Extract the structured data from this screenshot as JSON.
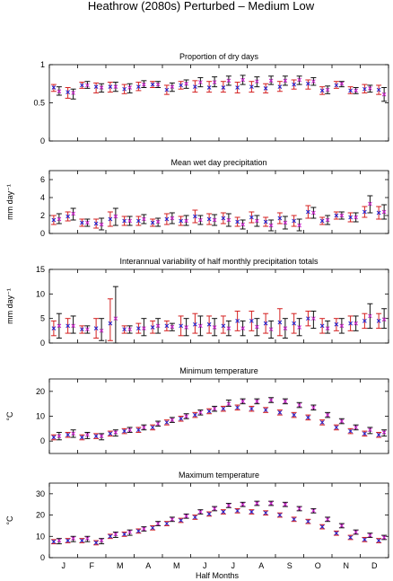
{
  "figure": {
    "title": "Heathrow (2080s) Perturbed – Medium Low",
    "xlabel": "Half Months",
    "month_labels": [
      "J",
      "F",
      "M",
      "A",
      "M",
      "J",
      "J",
      "A",
      "S",
      "O",
      "N",
      "D"
    ]
  },
  "colors": {
    "obs": "#d42020",
    "model": "#111111",
    "obs_marker": "#2020d0",
    "model_marker": "#cc20cc"
  },
  "chart_data": [
    {
      "type": "errorbar",
      "title": "Proportion of dry days",
      "ylabel": "",
      "ylim": [
        0,
        1
      ],
      "yticks": [
        0,
        0.5,
        1
      ],
      "ytick_labels": [
        "0",
        "0.5",
        "1"
      ],
      "x": [
        1,
        2,
        3,
        4,
        5,
        6,
        7,
        8,
        9,
        10,
        11,
        12,
        13,
        14,
        15,
        16,
        17,
        18,
        19,
        20,
        21,
        22,
        23,
        24
      ],
      "series": [
        {
          "role": "red",
          "center": [
            0.7,
            0.64,
            0.73,
            0.71,
            0.71,
            0.68,
            0.71,
            0.74,
            0.67,
            0.73,
            0.71,
            0.7,
            0.7,
            0.7,
            0.71,
            0.69,
            0.71,
            0.74,
            0.75,
            0.66,
            0.73,
            0.66,
            0.68,
            0.67
          ],
          "low": [
            0.65,
            0.56,
            0.69,
            0.63,
            0.64,
            0.62,
            0.66,
            0.7,
            0.61,
            0.68,
            0.64,
            0.64,
            0.64,
            0.63,
            0.64,
            0.63,
            0.65,
            0.68,
            0.68,
            0.61,
            0.69,
            0.62,
            0.63,
            0.61
          ],
          "high": [
            0.74,
            0.7,
            0.77,
            0.76,
            0.77,
            0.74,
            0.77,
            0.78,
            0.73,
            0.78,
            0.79,
            0.78,
            0.78,
            0.77,
            0.78,
            0.75,
            0.78,
            0.8,
            0.8,
            0.71,
            0.78,
            0.71,
            0.74,
            0.73
          ]
        },
        {
          "role": "black",
          "center": [
            0.65,
            0.63,
            0.73,
            0.7,
            0.71,
            0.7,
            0.74,
            0.74,
            0.71,
            0.75,
            0.77,
            0.77,
            0.79,
            0.8,
            0.78,
            0.79,
            0.79,
            0.8,
            0.78,
            0.67,
            0.75,
            0.66,
            0.69,
            0.61
          ],
          "low": [
            0.6,
            0.55,
            0.69,
            0.64,
            0.65,
            0.63,
            0.7,
            0.7,
            0.65,
            0.69,
            0.71,
            0.71,
            0.73,
            0.74,
            0.71,
            0.74,
            0.73,
            0.74,
            0.73,
            0.62,
            0.71,
            0.62,
            0.64,
            0.52
          ],
          "high": [
            0.71,
            0.68,
            0.78,
            0.75,
            0.77,
            0.75,
            0.79,
            0.78,
            0.76,
            0.8,
            0.83,
            0.84,
            0.85,
            0.86,
            0.84,
            0.85,
            0.85,
            0.85,
            0.83,
            0.72,
            0.78,
            0.7,
            0.73,
            0.7
          ]
        }
      ]
    },
    {
      "type": "errorbar",
      "title": "Mean wet day precipitation",
      "ylabel": "mm day⁻¹",
      "ylim": [
        0,
        7
      ],
      "yticks": [
        0,
        2,
        4,
        6
      ],
      "ytick_labels": [
        "0",
        "2",
        "4",
        "6"
      ],
      "x": [
        1,
        2,
        3,
        4,
        5,
        6,
        7,
        8,
        9,
        10,
        11,
        12,
        13,
        14,
        15,
        16,
        17,
        18,
        19,
        20,
        21,
        22,
        23,
        24
      ],
      "series": [
        {
          "role": "red",
          "center": [
            1.5,
            1.9,
            1.2,
            1.1,
            1.6,
            1.4,
            1.4,
            1.2,
            1.6,
            1.4,
            1.9,
            1.6,
            1.7,
            1.3,
            1.8,
            1.3,
            1.7,
            1.4,
            2.4,
            1.4,
            2.0,
            1.8,
            2.4,
            2.3
          ],
          "low": [
            1.0,
            1.4,
            0.8,
            0.6,
            0.8,
            0.9,
            0.9,
            0.8,
            1.0,
            0.9,
            1.2,
            1.0,
            1.1,
            0.8,
            1.2,
            0.8,
            1.1,
            0.8,
            1.7,
            1.0,
            1.6,
            1.3,
            1.8,
            1.6
          ],
          "high": [
            2.0,
            2.4,
            1.6,
            1.6,
            2.4,
            1.9,
            1.9,
            1.6,
            2.2,
            1.9,
            2.6,
            2.2,
            2.3,
            1.8,
            2.4,
            1.8,
            2.3,
            2.0,
            3.1,
            1.8,
            2.4,
            2.3,
            3.0,
            3.0
          ]
        },
        {
          "role": "black",
          "center": [
            1.6,
            2.2,
            1.2,
            1.0,
            1.9,
            1.4,
            1.6,
            1.3,
            1.7,
            1.4,
            1.5,
            1.5,
            1.5,
            1.0,
            1.4,
            0.9,
            1.2,
            0.9,
            2.3,
            1.5,
            2.0,
            1.8,
            3.3,
            2.4
          ],
          "low": [
            1.1,
            1.5,
            0.8,
            0.4,
            0.9,
            0.9,
            1.1,
            0.8,
            1.1,
            0.9,
            1.0,
            0.9,
            0.8,
            0.5,
            0.8,
            0.3,
            0.5,
            0.3,
            1.7,
            1.0,
            1.6,
            1.3,
            2.3,
            1.6
          ],
          "high": [
            2.2,
            2.8,
            1.6,
            1.7,
            2.8,
            1.9,
            2.1,
            1.7,
            2.3,
            2.0,
            2.0,
            2.1,
            2.2,
            1.5,
            2.0,
            1.5,
            1.9,
            1.6,
            2.9,
            2.0,
            2.4,
            2.3,
            4.2,
            3.2
          ]
        }
      ]
    },
    {
      "type": "errorbar",
      "title": "Interannual variability of half monthly precipitation totals",
      "ylabel": "mm day⁻¹",
      "ylim": [
        0,
        15
      ],
      "yticks": [
        0,
        5,
        10,
        15
      ],
      "ytick_labels": [
        "0",
        "5",
        "10",
        "15"
      ],
      "x": [
        1,
        2,
        3,
        4,
        5,
        6,
        7,
        8,
        9,
        10,
        11,
        12,
        13,
        14,
        15,
        16,
        17,
        18,
        19,
        20,
        21,
        22,
        23,
        24
      ],
      "series": [
        {
          "role": "red",
          "center": [
            3.0,
            3.5,
            2.8,
            3.0,
            4.0,
            2.8,
            3.0,
            3.2,
            3.5,
            3.5,
            3.8,
            3.8,
            3.5,
            4.5,
            4.5,
            4.0,
            4.2,
            4.0,
            5.0,
            3.5,
            3.8,
            4.0,
            4.5,
            4.5
          ],
          "low": [
            1.5,
            2.0,
            2.0,
            1.0,
            0.5,
            2.0,
            2.0,
            2.0,
            2.5,
            1.5,
            2.0,
            2.0,
            2.0,
            2.5,
            2.5,
            2.0,
            1.5,
            2.0,
            3.5,
            2.0,
            2.5,
            2.5,
            3.0,
            3.0
          ],
          "high": [
            4.5,
            5.0,
            3.5,
            5.0,
            9.0,
            3.5,
            4.0,
            4.5,
            4.5,
            5.5,
            6.0,
            5.5,
            5.5,
            6.5,
            6.5,
            6.0,
            7.0,
            6.0,
            6.5,
            5.0,
            5.0,
            5.5,
            6.0,
            6.0
          ]
        },
        {
          "role": "black",
          "center": [
            3.5,
            3.5,
            2.8,
            2.5,
            5.0,
            2.8,
            3.0,
            3.5,
            3.3,
            3.2,
            3.5,
            3.2,
            3.0,
            3.0,
            3.3,
            2.8,
            3.0,
            3.2,
            5.0,
            3.0,
            3.5,
            4.0,
            5.5,
            4.8
          ],
          "low": [
            1.0,
            2.0,
            2.0,
            0.5,
            0.0,
            2.0,
            1.5,
            2.0,
            2.5,
            1.5,
            1.5,
            1.5,
            1.5,
            1.5,
            1.5,
            1.0,
            1.0,
            1.5,
            3.0,
            2.0,
            2.0,
            2.5,
            3.0,
            3.0
          ],
          "high": [
            6.0,
            5.5,
            3.5,
            5.0,
            11.5,
            3.5,
            5.0,
            5.0,
            4.0,
            5.0,
            5.5,
            5.0,
            4.5,
            4.5,
            5.0,
            4.5,
            5.0,
            5.0,
            6.5,
            4.5,
            5.0,
            5.5,
            8.0,
            7.0
          ]
        }
      ]
    },
    {
      "type": "errorbar",
      "title": "Minimum temperature",
      "ylabel": "°C",
      "ylim": [
        -5,
        25
      ],
      "yticks": [
        0,
        10,
        20
      ],
      "ytick_labels": [
        "0",
        "10",
        "20"
      ],
      "x": [
        1,
        2,
        3,
        4,
        5,
        6,
        7,
        8,
        9,
        10,
        11,
        12,
        13,
        14,
        15,
        16,
        17,
        18,
        19,
        20,
        21,
        22,
        23,
        24
      ],
      "series": [
        {
          "role": "red",
          "center": [
            1.5,
            2.5,
            1.5,
            2.0,
            3.0,
            4.0,
            4.5,
            5.5,
            7.5,
            9.0,
            10.5,
            12.0,
            13.0,
            13.5,
            13.0,
            12.5,
            11.5,
            10.5,
            9.5,
            7.5,
            5.5,
            4.0,
            3.0,
            2.5
          ],
          "low": [
            0.5,
            1.5,
            0.5,
            1.0,
            2.0,
            3.0,
            3.5,
            4.5,
            6.5,
            8.0,
            9.5,
            11.0,
            12.0,
            12.5,
            12.0,
            11.5,
            10.5,
            9.5,
            8.5,
            6.5,
            4.5,
            3.0,
            2.0,
            1.5
          ],
          "high": [
            2.5,
            3.5,
            2.5,
            3.0,
            4.0,
            5.0,
            5.5,
            6.5,
            8.5,
            10.0,
            11.5,
            13.0,
            14.0,
            14.5,
            14.0,
            13.5,
            12.5,
            11.5,
            10.5,
            8.5,
            6.5,
            5.0,
            4.0,
            3.5
          ]
        },
        {
          "role": "black",
          "center": [
            2.0,
            3.0,
            2.5,
            2.0,
            3.5,
            4.5,
            5.5,
            7.0,
            8.5,
            10.0,
            11.5,
            13.0,
            15.0,
            16.0,
            16.0,
            16.5,
            16.0,
            14.5,
            13.5,
            10.5,
            8.0,
            5.5,
            4.5,
            3.5
          ],
          "low": [
            0.5,
            1.5,
            1.0,
            0.5,
            2.0,
            3.5,
            4.5,
            6.0,
            7.5,
            9.0,
            10.5,
            12.0,
            14.0,
            15.0,
            15.0,
            15.5,
            15.0,
            13.5,
            12.5,
            9.5,
            7.0,
            4.5,
            3.0,
            2.0
          ],
          "high": [
            3.5,
            4.5,
            3.5,
            3.0,
            4.5,
            5.5,
            6.5,
            8.0,
            9.5,
            11.0,
            12.5,
            14.0,
            16.5,
            17.0,
            17.0,
            17.5,
            17.0,
            15.5,
            14.5,
            11.5,
            9.0,
            6.5,
            5.5,
            4.5
          ]
        }
      ]
    },
    {
      "type": "errorbar",
      "title": "Maximum temperature",
      "ylabel": "°C",
      "ylim": [
        0,
        35
      ],
      "yticks": [
        0,
        10,
        20,
        30
      ],
      "ytick_labels": [
        "0",
        "10",
        "20",
        "30"
      ],
      "x": [
        1,
        2,
        3,
        4,
        5,
        6,
        7,
        8,
        9,
        10,
        11,
        12,
        13,
        14,
        15,
        16,
        17,
        18,
        19,
        20,
        21,
        22,
        23,
        24
      ],
      "series": [
        {
          "role": "red",
          "center": [
            7.5,
            8.0,
            8.0,
            7.0,
            10.0,
            11.0,
            12.5,
            14.0,
            16.0,
            17.5,
            19.0,
            20.5,
            21.5,
            22.0,
            21.5,
            21.0,
            20.0,
            18.0,
            17.0,
            14.5,
            11.5,
            9.5,
            8.5,
            8.0
          ],
          "low": [
            6.5,
            7.0,
            7.0,
            6.0,
            9.0,
            10.0,
            11.5,
            13.0,
            15.0,
            16.5,
            18.0,
            19.5,
            20.5,
            21.0,
            20.5,
            20.0,
            19.0,
            17.0,
            16.0,
            13.5,
            10.5,
            8.5,
            7.5,
            7.0
          ],
          "high": [
            8.5,
            9.0,
            9.0,
            8.0,
            11.0,
            12.0,
            13.5,
            15.0,
            17.0,
            18.5,
            20.0,
            21.5,
            22.5,
            23.0,
            22.5,
            22.0,
            21.0,
            19.0,
            18.0,
            15.5,
            12.5,
            10.5,
            9.5,
            9.0
          ]
        },
        {
          "role": "black",
          "center": [
            8.0,
            9.0,
            9.0,
            8.0,
            11.0,
            12.0,
            13.5,
            16.0,
            18.0,
            19.5,
            21.5,
            23.0,
            24.5,
            25.0,
            25.5,
            25.5,
            25.0,
            23.0,
            22.0,
            18.0,
            15.0,
            12.0,
            10.5,
            9.5
          ],
          "low": [
            6.5,
            7.5,
            7.5,
            6.5,
            9.5,
            10.5,
            12.5,
            15.0,
            17.0,
            18.5,
            20.5,
            22.0,
            23.5,
            24.0,
            24.5,
            24.5,
            24.0,
            22.0,
            21.0,
            17.0,
            14.0,
            11.0,
            9.5,
            8.5
          ],
          "high": [
            9.0,
            10.0,
            10.0,
            9.0,
            12.0,
            13.0,
            14.5,
            17.0,
            19.0,
            20.5,
            22.5,
            24.0,
            25.5,
            26.0,
            26.5,
            26.5,
            26.0,
            24.0,
            23.0,
            19.0,
            16.0,
            13.0,
            11.5,
            10.5
          ]
        }
      ]
    }
  ]
}
